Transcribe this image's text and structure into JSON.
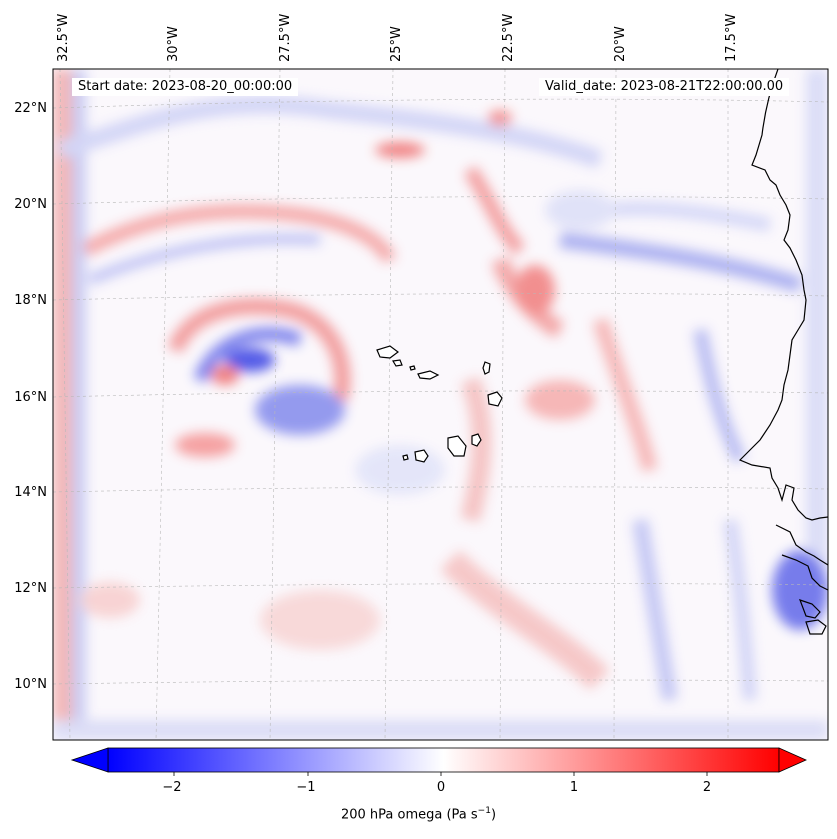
{
  "annotations": {
    "start_date": "Start date: 2023-08-20_00:00:00",
    "valid_date": "Valid_date: 2023-08-21T22:00:00.00"
  },
  "longitude_labels": [
    "32.5°W",
    "30°W",
    "27.5°W",
    "25°W",
    "22.5°W",
    "20°W",
    "17.5°W"
  ],
  "latitude_labels": [
    "22°N",
    "20°N",
    "18°N",
    "16°N",
    "14°N",
    "12°N",
    "10°N"
  ],
  "colorbar": {
    "ticks": [
      "−2",
      "−1",
      "0",
      "1",
      "2"
    ],
    "label_text": "200 hPa omega (Pa s",
    "label_exp": "−1",
    "label_close": ")",
    "range": [
      -2.7,
      2.7
    ],
    "colormap": "bwr",
    "extend": "both"
  },
  "colors": {
    "negative": "#0000ff",
    "zero": "#ffffff",
    "positive": "#ff0000",
    "coastline": "#000000",
    "grid": "#b0b0b0"
  }
}
